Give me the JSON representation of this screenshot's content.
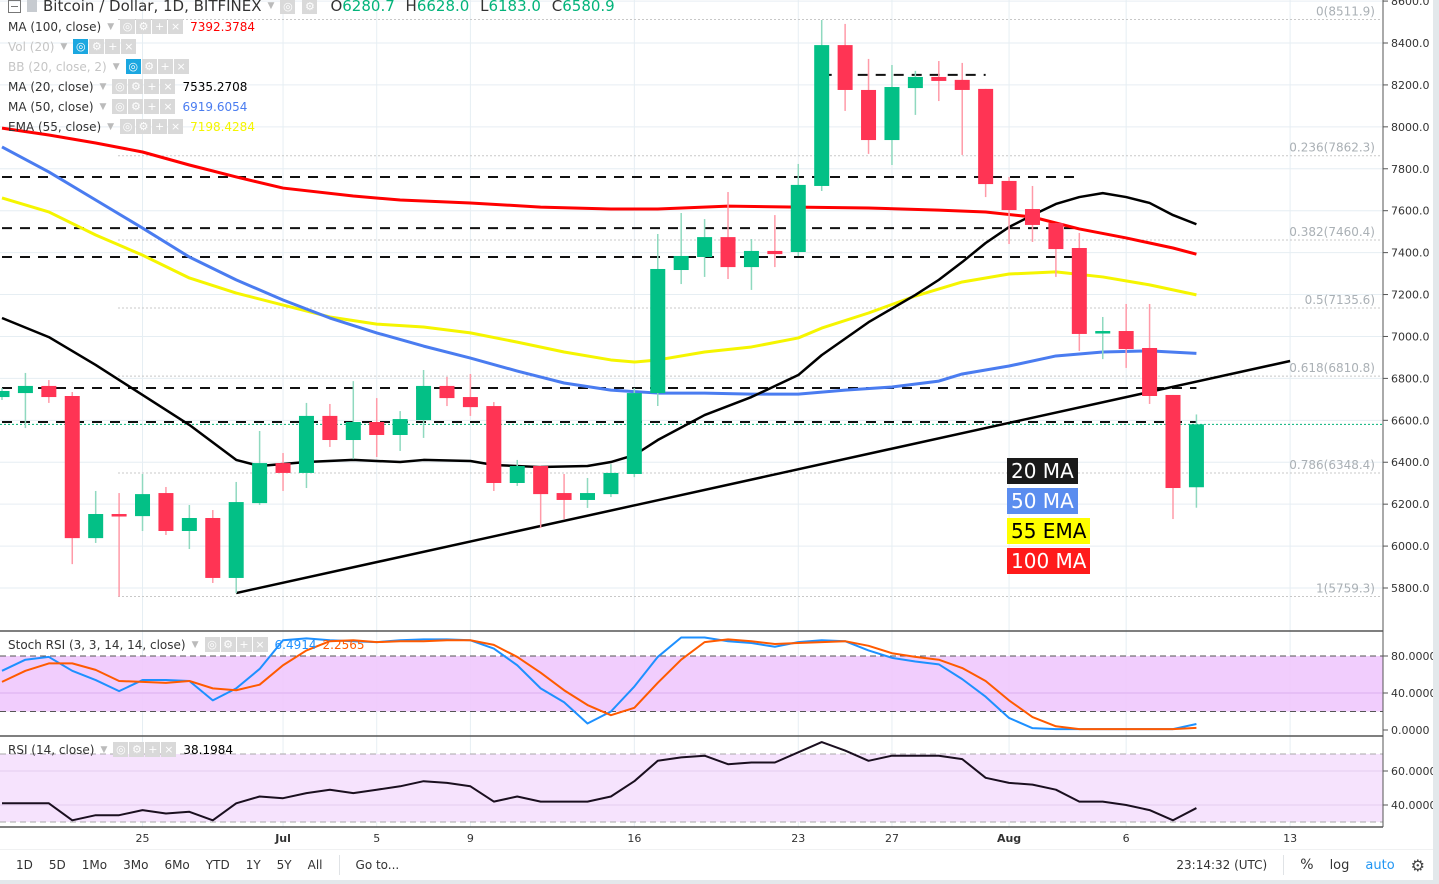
{
  "header": {
    "title": "Bitcoin / Dollar, 1D, BITFINEX",
    "ohlc": {
      "o_label": "O",
      "o": "6280.7",
      "h_label": "H",
      "h": "6628.0",
      "l_label": "L",
      "l": "6183.0",
      "c_label": "C",
      "c": "6580.9"
    }
  },
  "indicators": [
    {
      "label": "MA (100, close)",
      "value": "7392.3784",
      "color": "#ff0000",
      "hidden": false
    },
    {
      "label": "Vol (20)",
      "value": "",
      "color": "#c5c5c5",
      "hidden": true
    },
    {
      "label": "BB (20, close, 2)",
      "value": "",
      "color": "#c5c5c5",
      "hidden": true
    },
    {
      "label": "MA (20, close)",
      "value": "7535.2708",
      "color": "#000000",
      "hidden": false
    },
    {
      "label": "MA (50, close)",
      "value": "6919.6054",
      "color": "#4a7cf0",
      "hidden": false
    },
    {
      "label": "EMA (55, close)",
      "value": "7198.4284",
      "color": "#f5f500",
      "hidden": false
    }
  ],
  "legend_boxes": [
    {
      "label": "20 MA",
      "bg": "#1a1a1a",
      "fg": "#ffffff"
    },
    {
      "label": "50 MA",
      "bg": "#5b8def",
      "fg": "#ffffff"
    },
    {
      "label": "55 EMA",
      "bg": "#ffff00",
      "fg": "#000000"
    },
    {
      "label": "100 MA",
      "bg": "#ff1a1a",
      "fg": "#ffffff"
    }
  ],
  "colors": {
    "up": "#03c086",
    "down": "#ff3454",
    "up_wick": "#8fd9bf",
    "down_wick": "#ff9aa8",
    "ma20": "#000000",
    "ma50": "#4a7cf0",
    "ema55": "#f5f500",
    "ma100": "#ff0000",
    "stoch_k": "#1e90ff",
    "stoch_d": "#ff5a00",
    "rsi": "#1a0f1f"
  },
  "price_axis": {
    "ticks": [
      "8600.0",
      "8400.0",
      "8200.0",
      "8000.0",
      "7800.0",
      "7600.0",
      "7400.0",
      "7200.0",
      "7000.0",
      "6800.0",
      "6600.0",
      "6400.0",
      "6200.0",
      "6000.0",
      "5800.0"
    ]
  },
  "fib_levels": [
    {
      "label": "0(8511.9)",
      "price": 8511.9
    },
    {
      "label": "0.236(7862.3)",
      "price": 7862.3
    },
    {
      "label": "0.382(7460.4)",
      "price": 7460.4
    },
    {
      "label": "0.5(7135.6)",
      "price": 7135.6
    },
    {
      "label": "0.618(6810.8)",
      "price": 6810.8
    },
    {
      "label": "0.786(6348.4)",
      "price": 6348.4
    },
    {
      "label": "1(5759.3)",
      "price": 5759.3
    }
  ],
  "chart_data": {
    "type": "candlestick",
    "columns": [
      "date",
      "open",
      "high",
      "low",
      "close"
    ],
    "candles": [
      [
        "Jun 19",
        6711,
        6754,
        6697,
        6740
      ],
      [
        "Jun 20",
        6730,
        6826,
        6563,
        6764
      ],
      [
        "Jun 21",
        6764,
        6792,
        6683,
        6711
      ],
      [
        "Jun 22",
        6716,
        6735,
        5914,
        6038
      ],
      [
        "Jun 23",
        6038,
        6263,
        6015,
        6153
      ],
      [
        "Jun 24",
        6153,
        6253,
        5759,
        6143
      ],
      [
        "Jun 25",
        6143,
        6344,
        6072,
        6248
      ],
      [
        "Jun 26",
        6253,
        6282,
        6053,
        6072
      ],
      [
        "Jun 27",
        6072,
        6196,
        5986,
        6134
      ],
      [
        "Jun 28",
        6134,
        6172,
        5824,
        5848
      ],
      [
        "Jun 29",
        5848,
        6306,
        5776,
        6210
      ],
      [
        "Jun 30",
        6205,
        6549,
        6196,
        6396
      ],
      [
        "Jul 1",
        6396,
        6444,
        6263,
        6349
      ],
      [
        "Jul 2",
        6349,
        6683,
        6277,
        6621
      ],
      [
        "Jul 3",
        6621,
        6678,
        6473,
        6506
      ],
      [
        "Jul 4",
        6506,
        6787,
        6415,
        6592
      ],
      [
        "Jul 5",
        6592,
        6706,
        6425,
        6530
      ],
      [
        "Jul 6",
        6530,
        6644,
        6454,
        6606
      ],
      [
        "Jul 7",
        6601,
        6840,
        6516,
        6764
      ],
      [
        "Jul 8",
        6764,
        6807,
        6668,
        6706
      ],
      [
        "Jul 9",
        6711,
        6821,
        6621,
        6663
      ],
      [
        "Jul 10",
        6668,
        6687,
        6263,
        6301
      ],
      [
        "Jul 11",
        6301,
        6411,
        6287,
        6382
      ],
      [
        "Jul 12",
        6382,
        6382,
        6086,
        6248
      ],
      [
        "Jul 13",
        6253,
        6344,
        6129,
        6220
      ],
      [
        "Jul 14",
        6220,
        6325,
        6182,
        6253
      ],
      [
        "Jul 15",
        6248,
        6391,
        6234,
        6349
      ],
      [
        "Jul 16",
        6344,
        6754,
        6329,
        6730
      ],
      [
        "Jul 17",
        6730,
        7489,
        6668,
        7322
      ],
      [
        "Jul 18",
        7317,
        7589,
        7250,
        7384
      ],
      [
        "Jul 19",
        7379,
        7560,
        7284,
        7474
      ],
      [
        "Jul 20",
        7474,
        7689,
        7274,
        7331
      ],
      [
        "Jul 21",
        7331,
        7465,
        7222,
        7408
      ],
      [
        "Jul 22",
        7408,
        7579,
        7331,
        7393
      ],
      [
        "Jul 23",
        7403,
        7823,
        7384,
        7723
      ],
      [
        "Jul 24",
        7718,
        8510,
        7694,
        8390
      ],
      [
        "Jul 25",
        8390,
        8491,
        8076,
        8176
      ],
      [
        "Jul 26",
        8176,
        8324,
        7871,
        7937
      ],
      [
        "Jul 27",
        7937,
        8295,
        7818,
        8190
      ],
      [
        "Jul 28",
        8185,
        8267,
        8057,
        8238
      ],
      [
        "Jul 29",
        8238,
        8314,
        8123,
        8219
      ],
      [
        "Jul 30",
        8224,
        8305,
        7866,
        8176
      ],
      [
        "Jul 31",
        8181,
        8181,
        7665,
        7727
      ],
      [
        "Aug 1",
        7742,
        7761,
        7441,
        7603
      ],
      [
        "Aug 2",
        7608,
        7718,
        7451,
        7532
      ],
      [
        "Aug 3",
        7541,
        7541,
        7284,
        7417
      ],
      [
        "Aug 4",
        7422,
        7494,
        6931,
        7012
      ],
      [
        "Aug 5",
        7017,
        7093,
        6892,
        7026
      ],
      [
        "Aug 6",
        7026,
        7155,
        6850,
        6940
      ],
      [
        "Aug 7",
        6945,
        7155,
        6678,
        6716
      ],
      [
        "Aug 8",
        6721,
        6721,
        6129,
        6277
      ],
      [
        "Aug 9",
        6280.7,
        6628.0,
        6183.0,
        6580.9
      ]
    ],
    "ma20": [
      [
        "Jun 19",
        7088
      ],
      [
        "Jun 21",
        6997
      ],
      [
        "Jun 23",
        6864
      ],
      [
        "Jun 25",
        6721
      ],
      [
        "Jun 27",
        6578
      ],
      [
        "Jun 29",
        6411
      ],
      [
        "Jun 30",
        6382
      ],
      [
        "Jul 2",
        6401
      ],
      [
        "Jul 4",
        6411
      ],
      [
        "Jul 6",
        6401
      ],
      [
        "Jul 7",
        6411
      ],
      [
        "Jul 9",
        6406
      ],
      [
        "Jul 10",
        6387
      ],
      [
        "Jul 12",
        6377
      ],
      [
        "Jul 14",
        6382
      ],
      [
        "Jul 15",
        6401
      ],
      [
        "Jul 16",
        6434
      ],
      [
        "Jul 17",
        6506
      ],
      [
        "Jul 19",
        6625
      ],
      [
        "Jul 21",
        6711
      ],
      [
        "Jul 23",
        6816
      ],
      [
        "Jul 24",
        6911
      ],
      [
        "Jul 26",
        7068
      ],
      [
        "Jul 28",
        7198
      ],
      [
        "Jul 29",
        7270
      ],
      [
        "Jul 30",
        7355
      ],
      [
        "Jul 31",
        7446
      ],
      [
        "Aug 1",
        7522
      ],
      [
        "Aug 2",
        7579
      ],
      [
        "Aug 3",
        7632
      ],
      [
        "Aug 4",
        7665
      ],
      [
        "Aug 5",
        7684
      ],
      [
        "Aug 6",
        7665
      ],
      [
        "Aug 7",
        7637
      ],
      [
        "Aug 8",
        7579
      ],
      [
        "Aug 9",
        7535.27
      ]
    ],
    "ma50": [
      [
        "Jun 19",
        7904
      ],
      [
        "Jun 21",
        7785
      ],
      [
        "Jun 23",
        7651
      ],
      [
        "Jun 25",
        7517
      ],
      [
        "Jun 27",
        7379
      ],
      [
        "Jun 29",
        7270
      ],
      [
        "Jul 1",
        7174
      ],
      [
        "Jul 3",
        7088
      ],
      [
        "Jul 5",
        7017
      ],
      [
        "Jul 7",
        6954
      ],
      [
        "Jul 9",
        6897
      ],
      [
        "Jul 11",
        6835
      ],
      [
        "Jul 13",
        6778
      ],
      [
        "Jul 15",
        6744
      ],
      [
        "Jul 17",
        6730
      ],
      [
        "Jul 19",
        6730
      ],
      [
        "Jul 21",
        6725
      ],
      [
        "Jul 23",
        6725
      ],
      [
        "Jul 25",
        6744
      ],
      [
        "Jul 27",
        6759
      ],
      [
        "Jul 29",
        6787
      ],
      [
        "Jul 30",
        6821
      ],
      [
        "Aug 1",
        6859
      ],
      [
        "Aug 3",
        6907
      ],
      [
        "Aug 5",
        6926
      ],
      [
        "Aug 7",
        6931
      ],
      [
        "Aug 9",
        6919.61
      ]
    ],
    "ema55": [
      [
        "Jun 19",
        7661
      ],
      [
        "Jun 21",
        7594
      ],
      [
        "Jun 23",
        7484
      ],
      [
        "Jun 25",
        7388
      ],
      [
        "Jun 27",
        7279
      ],
      [
        "Jun 29",
        7207
      ],
      [
        "Jul 1",
        7150
      ],
      [
        "Jul 3",
        7093
      ],
      [
        "Jul 5",
        7059
      ],
      [
        "Jul 7",
        7045
      ],
      [
        "Jul 9",
        7017
      ],
      [
        "Jul 11",
        6973
      ],
      [
        "Jul 13",
        6926
      ],
      [
        "Jul 15",
        6888
      ],
      [
        "Jul 16",
        6878
      ],
      [
        "Jul 17",
        6888
      ],
      [
        "Jul 19",
        6926
      ],
      [
        "Jul 21",
        6950
      ],
      [
        "Jul 23",
        6993
      ],
      [
        "Jul 24",
        7040
      ],
      [
        "Jul 26",
        7112
      ],
      [
        "Jul 28",
        7193
      ],
      [
        "Jul 30",
        7260
      ],
      [
        "Aug 1",
        7298
      ],
      [
        "Aug 3",
        7308
      ],
      [
        "Aug 5",
        7284
      ],
      [
        "Aug 7",
        7246
      ],
      [
        "Aug 9",
        7198.43
      ]
    ],
    "ma100": [
      [
        "Jun 19",
        7994
      ],
      [
        "Jun 21",
        7961
      ],
      [
        "Jun 23",
        7923
      ],
      [
        "Jun 25",
        7880
      ],
      [
        "Jun 27",
        7818
      ],
      [
        "Jun 29",
        7761
      ],
      [
        "Jul 1",
        7708
      ],
      [
        "Jul 4",
        7670
      ],
      [
        "Jul 6",
        7651
      ],
      [
        "Jul 9",
        7637
      ],
      [
        "Jul 12",
        7617
      ],
      [
        "Jul 15",
        7608
      ],
      [
        "Jul 17",
        7608
      ],
      [
        "Jul 20",
        7622
      ],
      [
        "Jul 23",
        7617
      ],
      [
        "Jul 26",
        7613
      ],
      [
        "Jul 29",
        7603
      ],
      [
        "Jul 31",
        7594
      ],
      [
        "Aug 2",
        7570
      ],
      [
        "Aug 4",
        7513
      ],
      [
        "Aug 6",
        7470
      ],
      [
        "Aug 8",
        7422
      ],
      [
        "Aug 9",
        7392.38
      ]
    ],
    "trendline": [
      [
        "Jun 29",
        5776
      ],
      [
        "Aug 13",
        6883
      ]
    ],
    "horizontal_lines": [
      {
        "price": 8248,
        "from": "Jul 24",
        "to": "Jul 31"
      },
      {
        "price": 7761,
        "from": "Jun 19",
        "to": "Aug 4"
      },
      {
        "price": 7517,
        "from": "Jun 19",
        "to": "Aug 4"
      },
      {
        "price": 7379,
        "from": "Jun 19",
        "to": "Aug 4"
      },
      {
        "price": 6754,
        "from": "Jun 19",
        "to": "Aug 9"
      },
      {
        "price": 6592,
        "from": "Jun 19",
        "to": "Aug 9"
      }
    ],
    "ylim": [
      5700,
      8600
    ],
    "stoch_rsi": {
      "label": "Stoch RSI (3, 3, 14, 14, close)",
      "k_value": "6.4914",
      "d_value": "2.2565",
      "bands": [
        20,
        80
      ],
      "ylim": [
        0,
        100
      ],
      "ticks": [
        "80.0000",
        "40.0000",
        "0.0000"
      ],
      "k": [
        64,
        76,
        79,
        64,
        54,
        42,
        54,
        54,
        53,
        32,
        45,
        66,
        97,
        99,
        97,
        96,
        95,
        97,
        98,
        98,
        97,
        88,
        70,
        45,
        30,
        7,
        20,
        47,
        79,
        100,
        100,
        96,
        94,
        90,
        95,
        97,
        96,
        86,
        78,
        74,
        71,
        55,
        36,
        13,
        2,
        1,
        1,
        1,
        1,
        1,
        1,
        6.49
      ],
      "d": [
        52,
        64,
        72,
        72,
        65,
        53,
        52,
        51,
        53,
        45,
        43,
        49,
        70,
        86,
        96,
        97,
        95,
        96,
        96,
        97,
        97,
        92,
        79,
        62,
        43,
        27,
        16,
        24,
        51,
        76,
        95,
        98,
        96,
        93,
        94,
        95,
        96,
        91,
        83,
        79,
        76,
        67,
        53,
        32,
        14,
        4,
        1,
        1,
        1,
        1,
        1,
        2.26
      ]
    },
    "rsi": {
      "label": "RSI (14, close)",
      "value": "38.1984",
      "bands": [
        30,
        70
      ],
      "ticks": [
        "60.0000",
        "40.0000"
      ],
      "values": [
        41,
        41,
        41,
        31,
        34,
        34,
        37,
        35,
        36,
        31,
        41,
        45,
        44,
        47,
        49,
        47,
        49,
        51,
        54,
        53,
        51,
        42,
        45,
        42,
        42,
        42,
        45,
        54,
        66,
        68,
        69,
        64,
        65,
        65,
        71,
        77,
        72,
        66,
        69,
        69,
        69,
        67,
        56,
        53,
        52,
        49,
        42,
        42,
        40,
        37,
        31,
        38.2
      ]
    }
  },
  "time_axis": {
    "ticks": [
      {
        "label": "25",
        "date": "Jun 25"
      },
      {
        "label": "Jul",
        "date": "Jul 1"
      },
      {
        "label": "5",
        "date": "Jul 5"
      },
      {
        "label": "9",
        "date": "Jul 9"
      },
      {
        "label": "16",
        "date": "Jul 16"
      },
      {
        "label": "23",
        "date": "Jul 23"
      },
      {
        "label": "27",
        "date": "Jul 27"
      },
      {
        "label": "Aug",
        "date": "Aug 1"
      },
      {
        "label": "6",
        "date": "Aug 6"
      },
      {
        "label": "13",
        "date": "Aug 13"
      }
    ]
  },
  "toolbar": {
    "ranges": [
      "1D",
      "5D",
      "1Mo",
      "3Mo",
      "6Mo",
      "YTD",
      "1Y",
      "5Y",
      "All"
    ],
    "goto": "Go to...",
    "time": "23:14:32 (UTC)",
    "percent": "%",
    "log": "log",
    "auto": "auto",
    "settings_icon": "gear-icon"
  }
}
